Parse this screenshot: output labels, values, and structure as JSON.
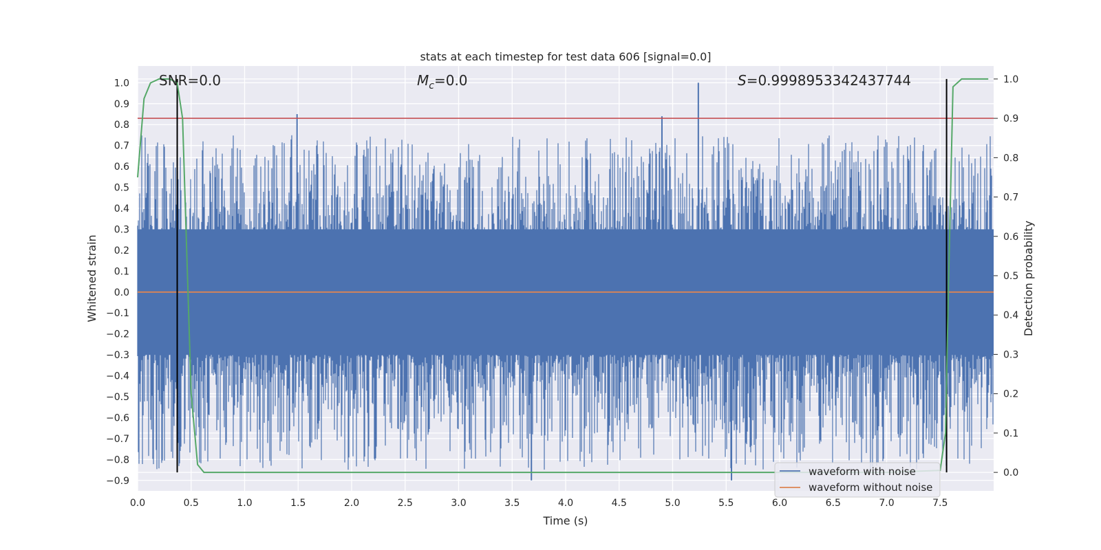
{
  "chart_data": {
    "type": "line",
    "title": "stats at each timestep for test data 606 [signal=0.0]",
    "xlabel": "Time (s)",
    "ylabel": "Whitened strain",
    "y2label": "Detection probability",
    "xlim": [
      0.0,
      8.0
    ],
    "ylim": [
      -0.95,
      1.08
    ],
    "y2lim": [
      -0.047,
      1.033
    ],
    "x_ticks": [
      "0.0",
      "0.5",
      "1.0",
      "1.5",
      "2.0",
      "2.5",
      "3.0",
      "3.5",
      "4.0",
      "4.5",
      "5.0",
      "5.5",
      "6.0",
      "6.5",
      "7.0",
      "7.5"
    ],
    "y_ticks": [
      "1.0",
      "0.9",
      "0.8",
      "0.7",
      "0.6",
      "0.5",
      "0.4",
      "0.3",
      "0.2",
      "0.1",
      "0.0",
      "−0.1",
      "−0.2",
      "−0.3",
      "−0.4",
      "−0.5",
      "−0.6",
      "−0.7",
      "−0.8",
      "−0.9"
    ],
    "y2_ticks": [
      "1.0",
      "0.9",
      "0.8",
      "0.7",
      "0.6",
      "0.5",
      "0.4",
      "0.3",
      "0.2",
      "0.1",
      "0.0"
    ],
    "annotations": {
      "snr": "SNR=0.0",
      "mc_symbol": "M",
      "mc_sub": "c",
      "mc_value": "=0.0",
      "s_symbol": "S",
      "s_value": "=0.9998953342437744"
    },
    "threshold_y2": 0.9,
    "vertical_lines_x": [
      0.37,
      7.56
    ],
    "legend": {
      "placement": "lower-right",
      "items": [
        "waveform with noise",
        "waveform without noise"
      ]
    },
    "series": [
      {
        "name": "waveform with noise",
        "color": "#4c72b0",
        "description_range": [
          -0.9,
          1.0
        ],
        "peaks": [
          [
            0.37,
            0.7
          ],
          [
            1.49,
            0.85
          ],
          [
            4.9,
            0.84
          ],
          [
            5.24,
            1.0
          ],
          [
            3.68,
            -0.9
          ],
          [
            5.55,
            -0.9
          ]
        ]
      },
      {
        "name": "waveform without noise",
        "color": "#dd8452",
        "constant_value": 0.0
      },
      {
        "name": "Detection probability",
        "color": "#55a868",
        "axis": "right",
        "x": [
          0.0,
          0.06,
          0.12,
          0.2,
          0.3,
          0.37,
          0.42,
          0.5,
          0.56,
          0.62,
          0.7,
          1.0,
          3.0,
          5.0,
          6.0,
          7.0,
          7.5,
          7.55,
          7.58,
          7.62,
          7.7,
          7.8,
          7.95
        ],
        "values": [
          0.75,
          0.95,
          0.99,
          1.0,
          1.0,
          0.99,
          0.9,
          0.2,
          0.02,
          0.0,
          0.0,
          0.0,
          0.0,
          0.0,
          0.0,
          0.0,
          0.005,
          0.1,
          0.5,
          0.98,
          1.0,
          1.0,
          1.0
        ]
      }
    ],
    "colors": {
      "background": "#eaeaf2",
      "grid": "#ffffff",
      "threshold": "#c44e52",
      "vline": "#000000"
    }
  }
}
